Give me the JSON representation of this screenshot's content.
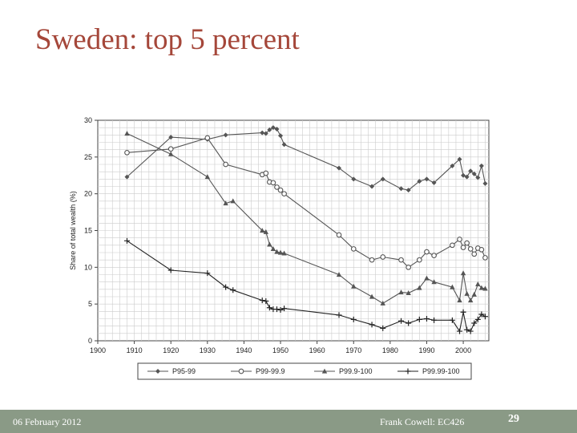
{
  "slide": {
    "title": "Sweden: top 5 percent",
    "date": "06 February 2012",
    "author": "Frank Cowell: EC426",
    "page_number": "29"
  },
  "colors": {
    "title": "#a5473a",
    "footer": "#8a9a86",
    "series": "#555555",
    "grid": "#cccccc"
  },
  "chart_data": {
    "type": "line",
    "title": "",
    "xlabel": "",
    "ylabel": "Share of total wealth (%)",
    "xlim": [
      1900,
      2007
    ],
    "ylim": [
      0,
      30
    ],
    "x_ticks": [
      1900,
      1910,
      1920,
      1930,
      1940,
      1950,
      1960,
      1970,
      1980,
      1990,
      2000
    ],
    "y_ticks": [
      0,
      5,
      10,
      15,
      20,
      25,
      30
    ],
    "grid": true,
    "legend_position": "bottom",
    "series": [
      {
        "name": "P95-99",
        "marker": "diamond",
        "points": [
          [
            1908,
            22.3
          ],
          [
            1920,
            27.7
          ],
          [
            1930,
            27.4
          ],
          [
            1935,
            28.0
          ],
          [
            1945,
            28.3
          ],
          [
            1946,
            28.2
          ],
          [
            1947,
            28.7
          ],
          [
            1948,
            29.0
          ],
          [
            1949,
            28.8
          ],
          [
            1950,
            27.9
          ],
          [
            1951,
            26.7
          ],
          [
            1966,
            23.5
          ],
          [
            1970,
            22.0
          ],
          [
            1975,
            21.0
          ],
          [
            1978,
            22.0
          ],
          [
            1983,
            20.7
          ],
          [
            1985,
            20.5
          ],
          [
            1988,
            21.7
          ],
          [
            1990,
            22.0
          ],
          [
            1992,
            21.5
          ],
          [
            1997,
            23.8
          ],
          [
            1999,
            24.7
          ],
          [
            2000,
            22.5
          ],
          [
            2001,
            22.3
          ],
          [
            2002,
            23.1
          ],
          [
            2003,
            22.7
          ],
          [
            2004,
            22.2
          ],
          [
            2005,
            23.8
          ],
          [
            2006,
            21.4
          ]
        ]
      },
      {
        "name": "P99-99.9",
        "marker": "circle",
        "points": [
          [
            1908,
            25.6
          ],
          [
            1920,
            26.1
          ],
          [
            1930,
            27.6
          ],
          [
            1935,
            24.0
          ],
          [
            1945,
            22.6
          ],
          [
            1946,
            22.8
          ],
          [
            1947,
            21.6
          ],
          [
            1948,
            21.5
          ],
          [
            1949,
            20.9
          ],
          [
            1950,
            20.5
          ],
          [
            1951,
            20.0
          ],
          [
            1966,
            14.4
          ],
          [
            1970,
            12.5
          ],
          [
            1975,
            11.0
          ],
          [
            1978,
            11.4
          ],
          [
            1983,
            11.0
          ],
          [
            1985,
            10.0
          ],
          [
            1988,
            11.0
          ],
          [
            1990,
            12.1
          ],
          [
            1992,
            11.6
          ],
          [
            1997,
            13.0
          ],
          [
            1999,
            13.8
          ],
          [
            2000,
            12.7
          ],
          [
            2001,
            13.3
          ],
          [
            2002,
            12.5
          ],
          [
            2003,
            11.8
          ],
          [
            2004,
            12.6
          ],
          [
            2005,
            12.4
          ],
          [
            2006,
            11.3
          ]
        ]
      },
      {
        "name": "P99.9-100",
        "marker": "triangle",
        "points": [
          [
            1908,
            28.2
          ],
          [
            1920,
            25.4
          ],
          [
            1930,
            22.3
          ],
          [
            1935,
            18.7
          ],
          [
            1937,
            19.0
          ],
          [
            1945,
            15.0
          ],
          [
            1946,
            14.8
          ],
          [
            1947,
            13.1
          ],
          [
            1948,
            12.5
          ],
          [
            1949,
            12.1
          ],
          [
            1950,
            12.0
          ],
          [
            1951,
            11.9
          ],
          [
            1966,
            9.0
          ],
          [
            1970,
            7.4
          ],
          [
            1975,
            6.0
          ],
          [
            1978,
            5.1
          ],
          [
            1983,
            6.6
          ],
          [
            1985,
            6.5
          ],
          [
            1988,
            7.2
          ],
          [
            1990,
            8.5
          ],
          [
            1992,
            8.0
          ],
          [
            1997,
            7.3
          ],
          [
            1999,
            5.5
          ],
          [
            2000,
            9.2
          ],
          [
            2001,
            6.4
          ],
          [
            2002,
            5.5
          ],
          [
            2003,
            6.3
          ],
          [
            2004,
            7.7
          ],
          [
            2005,
            7.2
          ],
          [
            2006,
            7.1
          ]
        ]
      },
      {
        "name": "P99.99-100",
        "marker": "plus",
        "points": [
          [
            1908,
            13.6
          ],
          [
            1920,
            9.6
          ],
          [
            1930,
            9.2
          ],
          [
            1935,
            7.3
          ],
          [
            1937,
            6.9
          ],
          [
            1945,
            5.5
          ],
          [
            1946,
            5.4
          ],
          [
            1947,
            4.5
          ],
          [
            1948,
            4.3
          ],
          [
            1949,
            4.3
          ],
          [
            1950,
            4.2
          ],
          [
            1951,
            4.4
          ],
          [
            1966,
            3.5
          ],
          [
            1970,
            2.9
          ],
          [
            1975,
            2.2
          ],
          [
            1978,
            1.7
          ],
          [
            1983,
            2.7
          ],
          [
            1985,
            2.4
          ],
          [
            1988,
            2.9
          ],
          [
            1990,
            3.0
          ],
          [
            1992,
            2.8
          ],
          [
            1997,
            2.8
          ],
          [
            1999,
            1.3
          ],
          [
            2000,
            3.9
          ],
          [
            2001,
            1.5
          ],
          [
            2002,
            1.3
          ],
          [
            2003,
            2.4
          ],
          [
            2004,
            2.9
          ],
          [
            2005,
            3.6
          ],
          [
            2006,
            3.3
          ]
        ]
      }
    ]
  }
}
